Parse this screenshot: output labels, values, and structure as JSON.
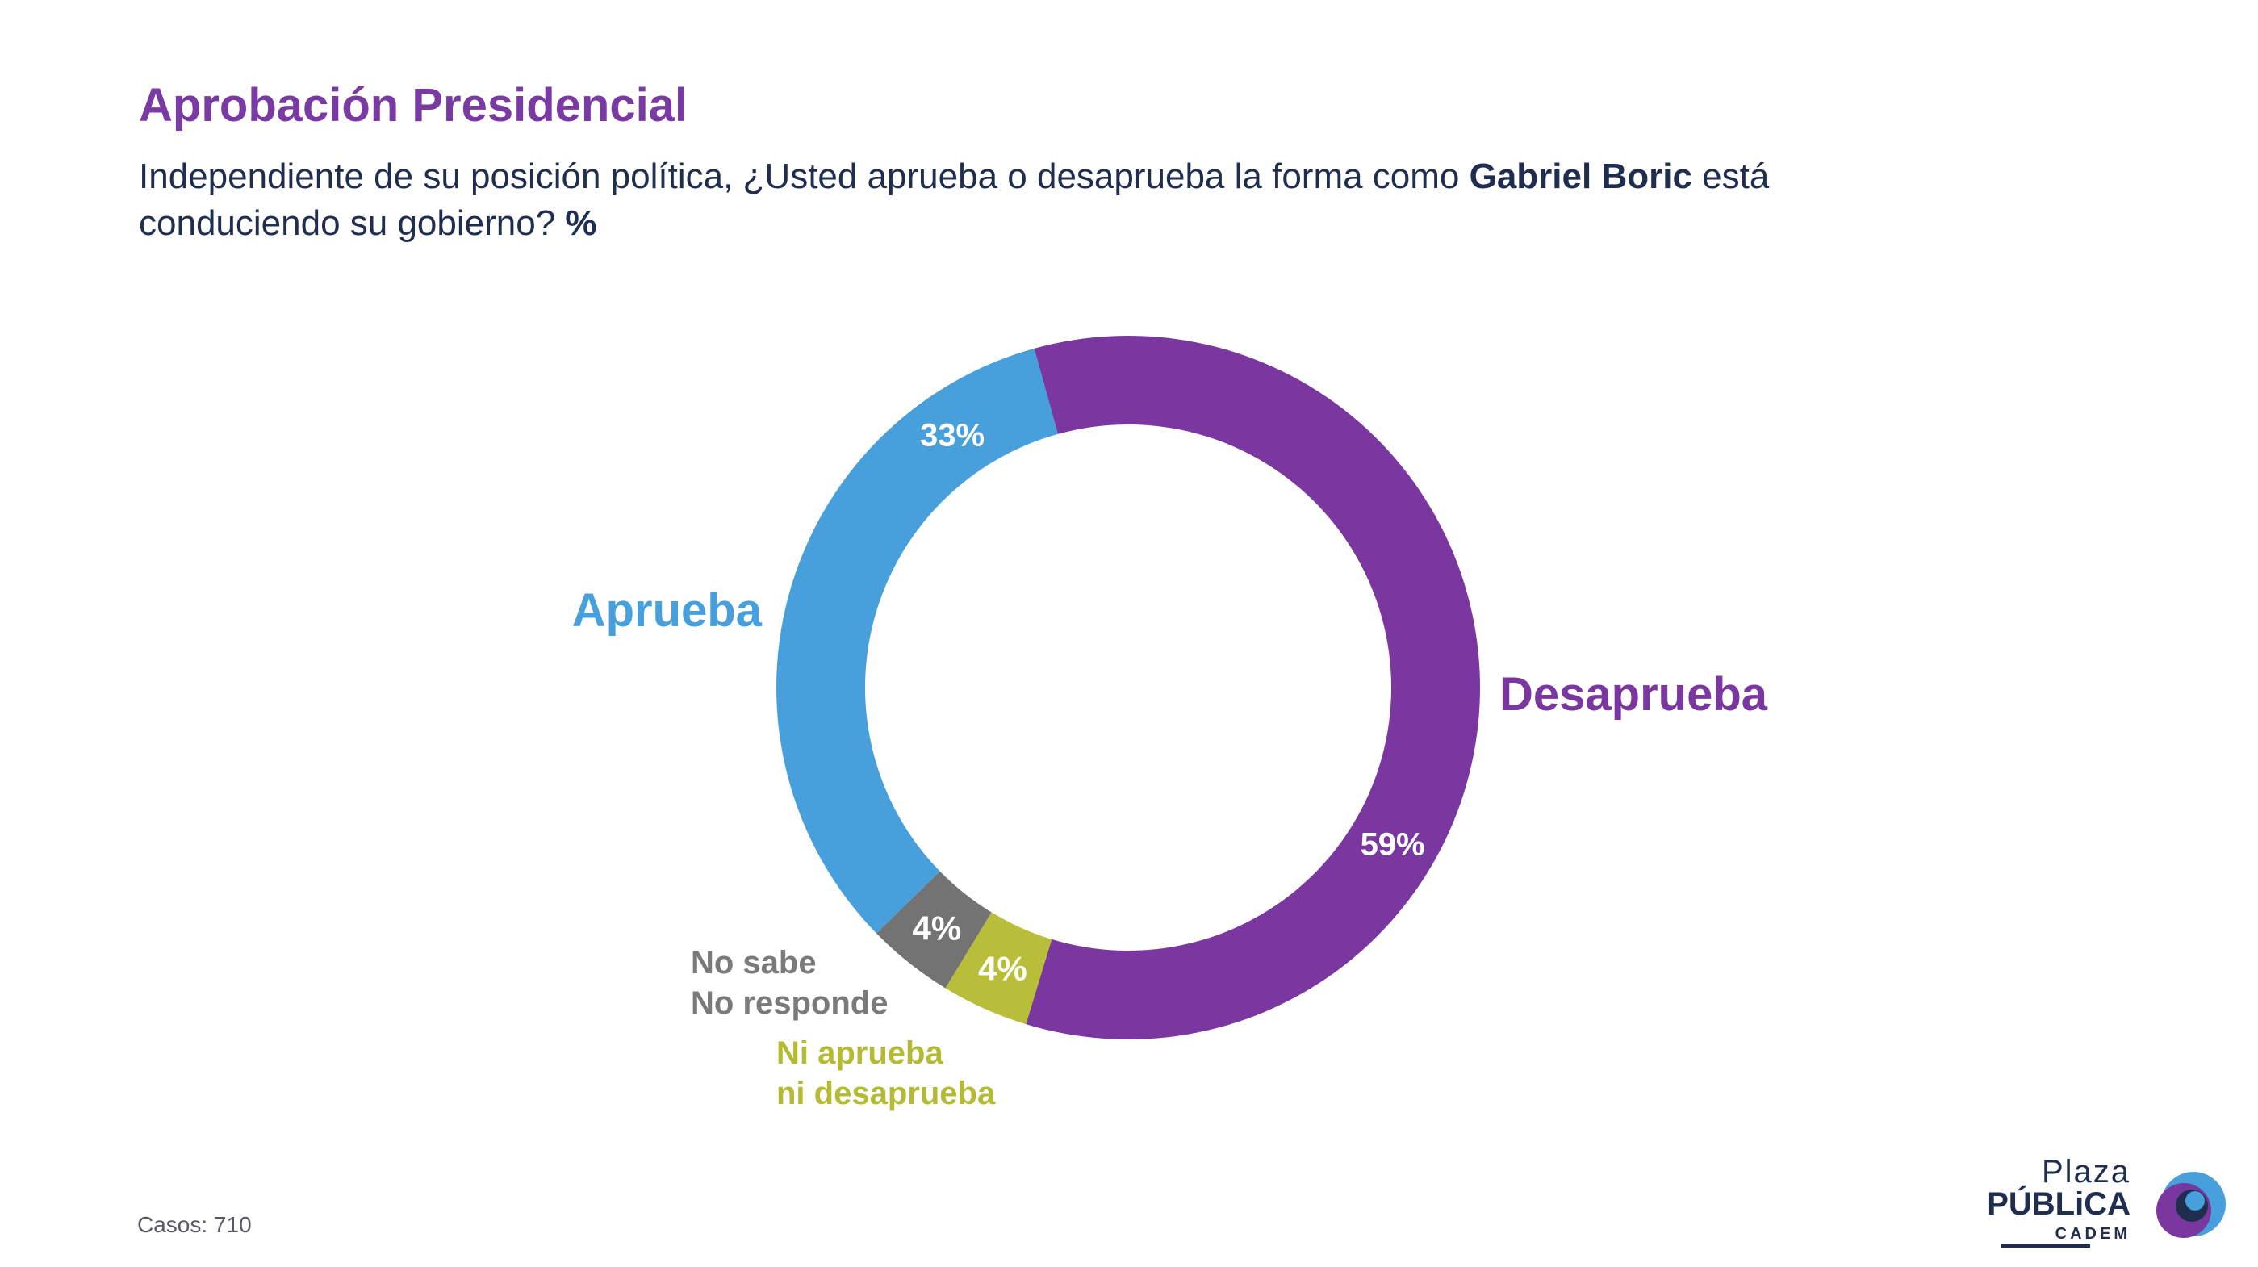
{
  "header": {
    "title": "Aprobación Presidencial",
    "subtitle_pre": "Independiente de su posición política, ¿Usted aprueba o desaprueba la forma como ",
    "subtitle_bold": "Gabriel Boric",
    "subtitle_mid": " está conduciendo su gobierno? ",
    "subtitle_pct": "%"
  },
  "chart_data": {
    "type": "pie",
    "donut": true,
    "title": "Aprobación Presidencial",
    "slices": [
      {
        "label": "Desaprueba",
        "label_lines": [
          "Desaprueba"
        ],
        "value": 59,
        "value_label": "59%",
        "color": "#7a37a0",
        "label_color": "#7a37a0"
      },
      {
        "label": "Ni aprueba ni desaprueba",
        "label_lines": [
          "Ni aprueba",
          "ni desaprueba"
        ],
        "value": 4,
        "value_label": "4%",
        "color": "#b8be3a",
        "label_color": "#b5ba33"
      },
      {
        "label": "No sabe No responde",
        "label_lines": [
          "No sabe",
          "No responde"
        ],
        "value": 4,
        "value_label": "4%",
        "color": "#737373",
        "label_color": "#7a7a7a"
      },
      {
        "label": "Aprueba",
        "label_lines": [
          "Aprueba"
        ],
        "value": 33,
        "value_label": "33%",
        "color": "#47a0db",
        "label_color": "#47a0db"
      }
    ]
  },
  "footer": {
    "cases": "Casos: 710"
  },
  "logo": {
    "line1": "Plaza",
    "line2": "PÚBLiCA",
    "line3": "CADEM"
  }
}
